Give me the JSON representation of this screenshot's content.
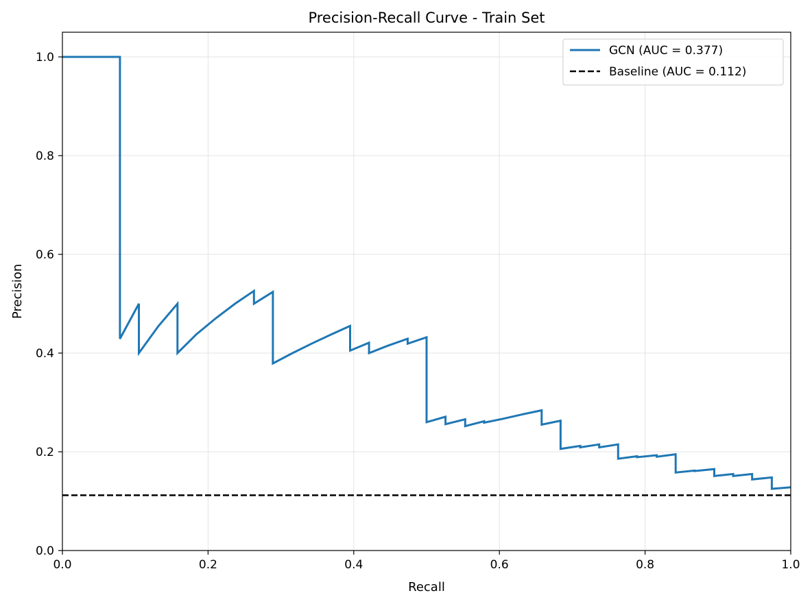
{
  "chart_data": {
    "type": "line",
    "title": "Precision-Recall Curve - Train Set",
    "xlabel": "Recall",
    "ylabel": "Precision",
    "xlim": [
      0,
      1
    ],
    "ylim": [
      0,
      1.05
    ],
    "xticks": [
      "0.0",
      "0.2",
      "0.4",
      "0.6",
      "0.8",
      "1.0"
    ],
    "yticks": [
      "0.0",
      "0.2",
      "0.4",
      "0.6",
      "0.8",
      "1.0"
    ],
    "grid": true,
    "legend_position": "top-right",
    "series": [
      {
        "name": "GCN (AUC = 0.377)",
        "color": "#1f77b4",
        "style": "solid",
        "points": [
          [
            0.0,
            1.0
          ],
          [
            0.079,
            1.0
          ],
          [
            0.079,
            0.429
          ],
          [
            0.105,
            0.5
          ],
          [
            0.105,
            0.4
          ],
          [
            0.132,
            0.455
          ],
          [
            0.158,
            0.5
          ],
          [
            0.158,
            0.4
          ],
          [
            0.184,
            0.438
          ],
          [
            0.211,
            0.471
          ],
          [
            0.237,
            0.5
          ],
          [
            0.263,
            0.526
          ],
          [
            0.263,
            0.5
          ],
          [
            0.289,
            0.524
          ],
          [
            0.289,
            0.379
          ],
          [
            0.316,
            0.4
          ],
          [
            0.342,
            0.419
          ],
          [
            0.368,
            0.437
          ],
          [
            0.395,
            0.455
          ],
          [
            0.395,
            0.405
          ],
          [
            0.421,
            0.421
          ],
          [
            0.421,
            0.4
          ],
          [
            0.447,
            0.415
          ],
          [
            0.474,
            0.429
          ],
          [
            0.474,
            0.419
          ],
          [
            0.5,
            0.432
          ],
          [
            0.5,
            0.26
          ],
          [
            0.526,
            0.271
          ],
          [
            0.526,
            0.256
          ],
          [
            0.553,
            0.266
          ],
          [
            0.553,
            0.252
          ],
          [
            0.579,
            0.262
          ],
          [
            0.579,
            0.259
          ],
          [
            0.605,
            0.267
          ],
          [
            0.632,
            0.276
          ],
          [
            0.658,
            0.284
          ],
          [
            0.658,
            0.255
          ],
          [
            0.684,
            0.263
          ],
          [
            0.684,
            0.206
          ],
          [
            0.711,
            0.212
          ],
          [
            0.711,
            0.209
          ],
          [
            0.737,
            0.215
          ],
          [
            0.737,
            0.209
          ],
          [
            0.763,
            0.215
          ],
          [
            0.763,
            0.186
          ],
          [
            0.789,
            0.191
          ],
          [
            0.789,
            0.189
          ],
          [
            0.816,
            0.193
          ],
          [
            0.816,
            0.19
          ],
          [
            0.842,
            0.195
          ],
          [
            0.842,
            0.158
          ],
          [
            0.868,
            0.162
          ],
          [
            0.868,
            0.161
          ],
          [
            0.895,
            0.165
          ],
          [
            0.895,
            0.151
          ],
          [
            0.921,
            0.155
          ],
          [
            0.921,
            0.151
          ],
          [
            0.947,
            0.155
          ],
          [
            0.947,
            0.144
          ],
          [
            0.974,
            0.148
          ],
          [
            0.974,
            0.125
          ],
          [
            1.0,
            0.128
          ]
        ]
      },
      {
        "name": "Baseline (AUC = 0.112)",
        "color": "#000000",
        "style": "dashed",
        "points": [
          [
            0.0,
            0.112
          ],
          [
            1.0,
            0.112
          ]
        ]
      }
    ]
  }
}
